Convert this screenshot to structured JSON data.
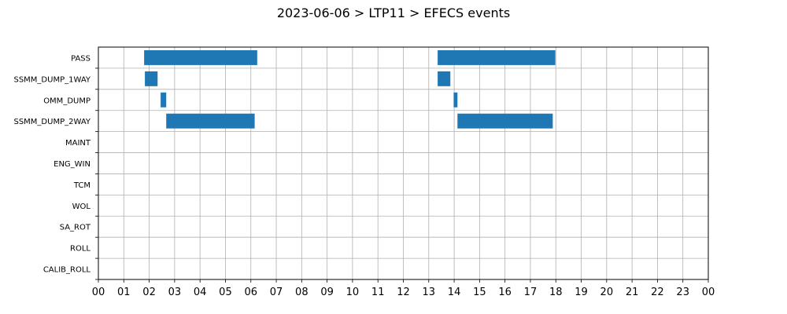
{
  "chart_data": {
    "type": "bar",
    "orientation": "horizontal",
    "title": "2023-06-06 > LTP11 > EFECS events",
    "xlabel": "",
    "ylabel": "",
    "xlim": [
      0,
      24
    ],
    "x_ticks": [
      0,
      1,
      2,
      3,
      4,
      5,
      6,
      7,
      8,
      9,
      10,
      11,
      12,
      13,
      14,
      15,
      16,
      17,
      18,
      19,
      20,
      21,
      22,
      23,
      24
    ],
    "x_tick_labels": [
      "00",
      "01",
      "02",
      "03",
      "04",
      "05",
      "06",
      "07",
      "08",
      "09",
      "10",
      "11",
      "12",
      "13",
      "14",
      "15",
      "16",
      "17",
      "18",
      "19",
      "20",
      "21",
      "22",
      "23",
      "00"
    ],
    "categories": [
      "PASS",
      "SSMM_DUMP_1WAY",
      "OMM_DUMP",
      "SSMM_DUMP_2WAY",
      "MAINT",
      "ENG_WIN",
      "TCM",
      "WOL",
      "SA_ROT",
      "ROLL",
      "CALIB_ROLL"
    ],
    "grid": true,
    "legend": false,
    "bar_color": "#1f77b4",
    "events": [
      {
        "category": "PASS",
        "start": 1.8,
        "end": 6.25
      },
      {
        "category": "PASS",
        "start": 13.35,
        "end": 17.98
      },
      {
        "category": "SSMM_DUMP_1WAY",
        "start": 1.83,
        "end": 2.33
      },
      {
        "category": "SSMM_DUMP_1WAY",
        "start": 13.35,
        "end": 13.85
      },
      {
        "category": "OMM_DUMP",
        "start": 2.45,
        "end": 2.67
      },
      {
        "category": "OMM_DUMP",
        "start": 13.98,
        "end": 14.13
      },
      {
        "category": "SSMM_DUMP_2WAY",
        "start": 2.67,
        "end": 6.15
      },
      {
        "category": "SSMM_DUMP_2WAY",
        "start": 14.13,
        "end": 17.88
      }
    ]
  }
}
